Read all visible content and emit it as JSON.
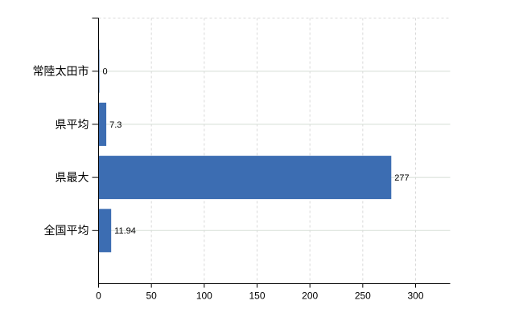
{
  "chart_data": {
    "type": "bar",
    "orientation": "horizontal",
    "title": "",
    "xlabel": "",
    "ylabel": "",
    "categories": [
      "常陸太田市",
      "県平均",
      "県最大",
      "全国平均"
    ],
    "values": [
      0,
      7.3,
      277,
      11.94
    ],
    "value_labels": [
      "0",
      "7.3",
      "277",
      "11.94"
    ],
    "x_ticks": [
      0,
      50,
      100,
      150,
      200,
      250,
      300
    ],
    "x_tick_labels": [
      "0",
      "50",
      "100",
      "150",
      "200",
      "250",
      "300"
    ],
    "xlim": [
      0,
      333
    ],
    "grid": true,
    "legend": false,
    "colors": {
      "bar": "#3c6db2",
      "vertical_gridline": "#d9d9d9",
      "horizontal_gridline": "#d5ddd5",
      "top_border": "#d9d9d9",
      "axis": "#000000",
      "category_text": "#000000",
      "value_text": "#1a1a1a",
      "tick_text": "#000000",
      "background": "#ffffff"
    }
  }
}
